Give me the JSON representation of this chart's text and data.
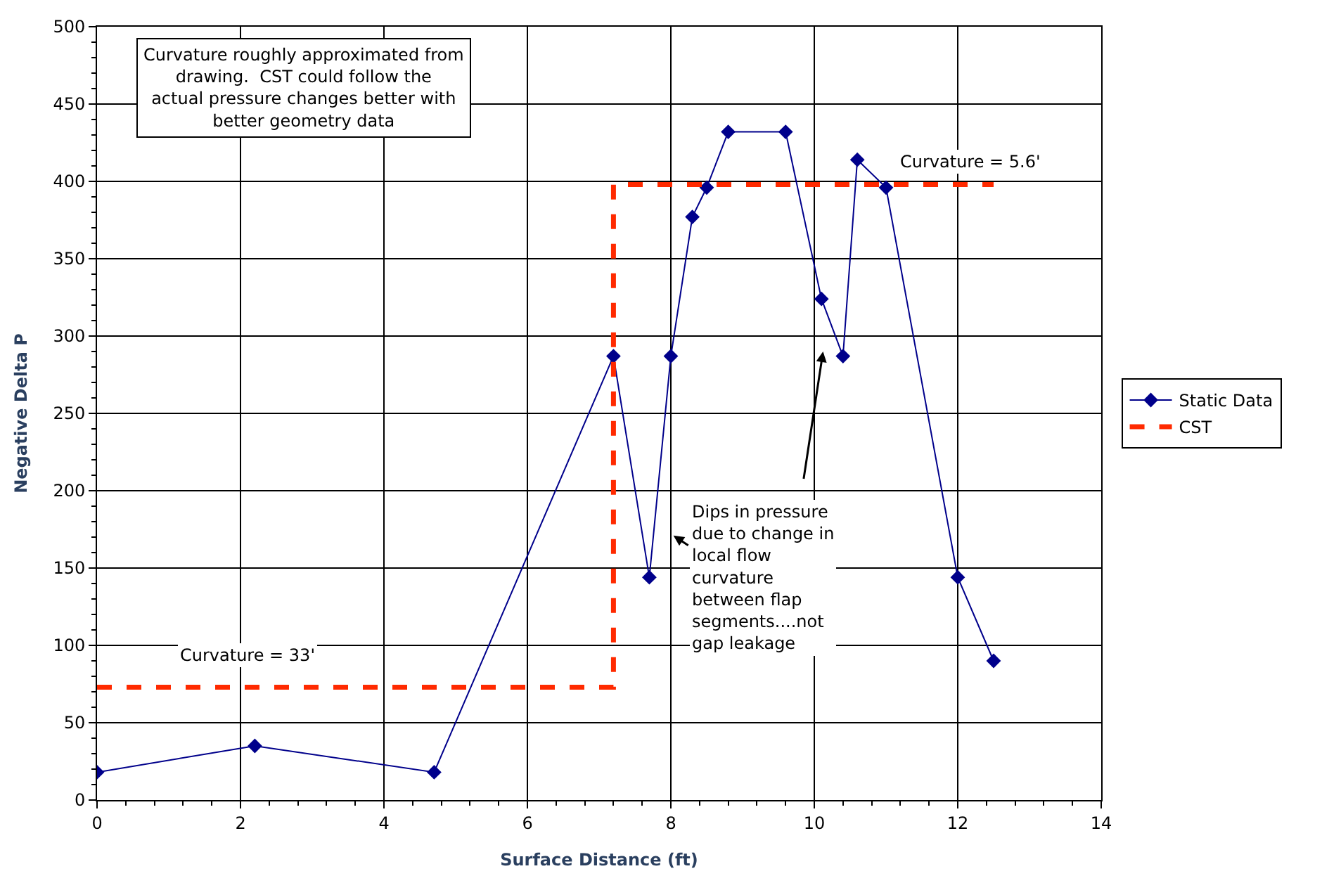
{
  "chart_data": {
    "type": "line",
    "xlabel": "Surface Distance (ft)",
    "ylabel": "Negative Delta P",
    "xlim": [
      0,
      14
    ],
    "xticks": [
      0,
      2,
      4,
      6,
      8,
      10,
      12,
      14
    ],
    "ylim": [
      0,
      500
    ],
    "yticks": [
      0,
      50,
      100,
      150,
      200,
      250,
      300,
      350,
      400,
      450,
      500
    ],
    "grid": true,
    "legend": "right",
    "series": [
      {
        "name": "Static Data",
        "color": "#00008b",
        "marker": "diamond",
        "line_style": "solid",
        "x": [
          0,
          2.2,
          4.7,
          7.2,
          7.7,
          8.0,
          8.3,
          8.5,
          8.8,
          9.6,
          10.1,
          10.4,
          10.6,
          11.0,
          12.0,
          12.5
        ],
        "values": [
          18,
          35,
          18,
          287,
          144,
          287,
          377,
          396,
          432,
          432,
          324,
          287,
          414,
          396,
          144,
          90
        ]
      },
      {
        "name": "CST",
        "color": "#ff2a00",
        "marker": "none",
        "line_style": "dashed",
        "x": [
          0,
          7.2,
          7.2,
          12.5
        ],
        "values": [
          73,
          73,
          398,
          398
        ]
      }
    ],
    "annotations": [
      "Curvature roughly approximated from drawing.  CST could follow the actual pressure changes better with better geometry data",
      "Curvature = 33'",
      "Curvature = 5.6'",
      "Dips in pressure due to change in local flow curvature between flap segments....not gap leakage"
    ]
  }
}
